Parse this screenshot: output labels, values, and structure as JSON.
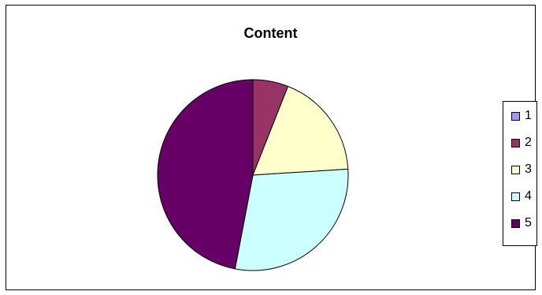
{
  "chart_data": {
    "type": "pie",
    "title": "Content",
    "categories": [
      "1",
      "2",
      "3",
      "4",
      "5"
    ],
    "values": [
      0,
      6,
      18,
      29,
      47
    ],
    "colors": [
      "#9999ff",
      "#993366",
      "#ffffcc",
      "#ccffff",
      "#660066"
    ],
    "legend_position": "right"
  }
}
